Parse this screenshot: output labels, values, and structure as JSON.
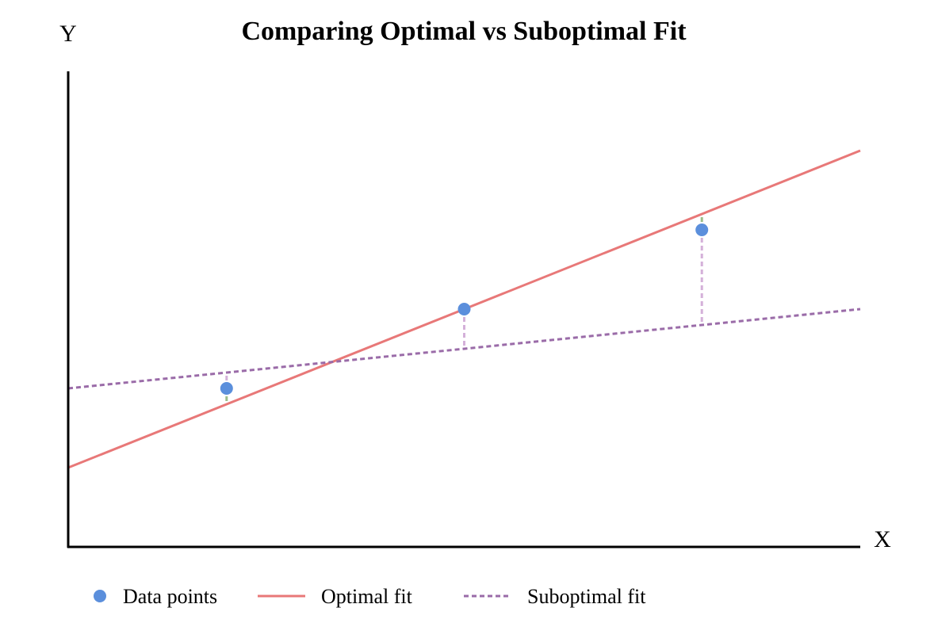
{
  "chart_data": {
    "type": "scatter",
    "title": "Comparing Optimal vs Suboptimal Fit",
    "xlabel": "X",
    "ylabel": "Y",
    "xlim": [
      0,
      10
    ],
    "ylim": [
      0,
      12
    ],
    "grid": false,
    "legend_placement": "bottom",
    "points": [
      {
        "x": 2,
        "y": 4
      },
      {
        "x": 5,
        "y": 6
      },
      {
        "x": 8,
        "y": 8
      }
    ],
    "series": [
      {
        "name": "Data points",
        "kind": "points",
        "color": "#5b8fdc"
      },
      {
        "name": "Optimal fit",
        "kind": "line",
        "slope": 0.8,
        "intercept": 2,
        "color": "#e87878",
        "dash": "solid"
      },
      {
        "name": "Suboptimal fit",
        "kind": "line",
        "slope": 0.2,
        "intercept": 4,
        "color": "#9a6ba8",
        "dash": "dashed"
      }
    ],
    "residual_colors": {
      "optimal": "#9bbd8a",
      "suboptimal": "#d4b0d9"
    }
  }
}
